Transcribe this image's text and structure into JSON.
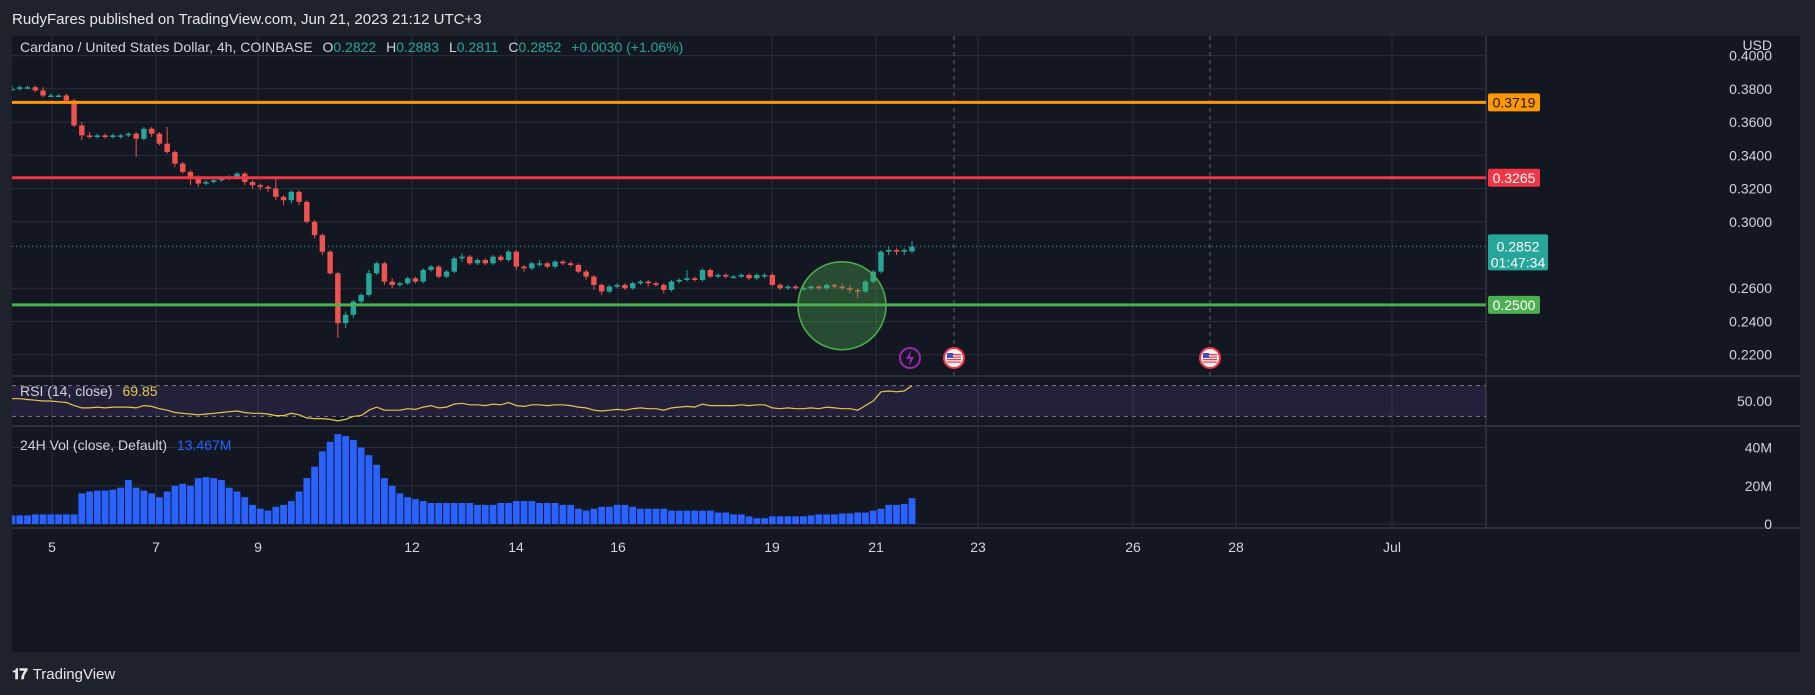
{
  "header": {
    "published": "RudyFares published on TradingView.com, Jun 21, 2023 21:12 UTC+3"
  },
  "footer": {
    "brand": "TradingView",
    "logo": "tv-logo-icon"
  },
  "legend": {
    "symbol": "Cardano / United States Dollar, 4h, COINBASE",
    "o_label": "O",
    "o_value": "0.2822",
    "h_label": "H",
    "h_value": "0.2883",
    "l_label": "L",
    "l_value": "0.2811",
    "c_label": "C",
    "c_value": "0.2852",
    "change": "+0.0030 (+1.06%)"
  },
  "rsi_legend": {
    "label": "RSI (14, close)",
    "value": "69.85"
  },
  "vol_legend": {
    "label": "24H Vol (close, Default)",
    "value": "13.467M"
  },
  "colors": {
    "up": "#26a69a",
    "down": "#ef5350",
    "volume": "#2962ff",
    "orange": "#ff9800",
    "red": "#f23645",
    "green": "#4caf50",
    "rsi": "#e0c850",
    "bg": "#131722",
    "grid": "#2a2e39"
  },
  "chart_data": [
    {
      "type": "candlestick",
      "title": "Cardano / United States Dollar, 4h, COINBASE",
      "y_unit": "USD",
      "ylim": [
        0.212,
        0.407
      ],
      "y_ticks": [
        "0.4000",
        "0.3800",
        "0.3600",
        "0.3400",
        "0.3200",
        "0.3000",
        "0.2600",
        "0.2400",
        "0.2200"
      ],
      "x_ticks": [
        "5",
        "7",
        "9",
        "12",
        "14",
        "16",
        "19",
        "21",
        "23",
        "26",
        "28",
        "Jul"
      ],
      "horizontal_levels": [
        {
          "value": 0.3719,
          "label": "0.3719",
          "color": "#ff9800"
        },
        {
          "value": 0.3265,
          "label": "0.3265",
          "color": "#f23645"
        },
        {
          "value": 0.25,
          "label": "0.2500",
          "color": "#4caf50"
        }
      ],
      "last_price": {
        "value": 0.2852,
        "label": "0.2852",
        "countdown": "01:47:34"
      },
      "annotation": {
        "type": "circle",
        "color": "#4caf50",
        "center_price": 0.2495
      },
      "events": [
        {
          "icon": "lightning-event-icon"
        },
        {
          "icon": "us-flag-event-icon"
        },
        {
          "icon": "us-flag-event-icon"
        }
      ],
      "close": [
        0.38,
        0.381,
        0.381,
        0.379,
        0.376,
        0.376,
        0.376,
        0.373,
        0.358,
        0.352,
        0.351,
        0.352,
        0.351,
        0.352,
        0.352,
        0.353,
        0.35,
        0.356,
        0.353,
        0.347,
        0.342,
        0.335,
        0.33,
        0.327,
        0.323,
        0.324,
        0.325,
        0.326,
        0.327,
        0.329,
        0.324,
        0.322,
        0.321,
        0.32,
        0.315,
        0.313,
        0.318,
        0.312,
        0.3,
        0.292,
        0.282,
        0.269,
        0.239,
        0.244,
        0.252,
        0.256,
        0.269,
        0.275,
        0.264,
        0.262,
        0.263,
        0.266,
        0.264,
        0.271,
        0.273,
        0.267,
        0.27,
        0.278,
        0.279,
        0.275,
        0.277,
        0.275,
        0.279,
        0.277,
        0.282,
        0.273,
        0.272,
        0.275,
        0.275,
        0.273,
        0.276,
        0.275,
        0.274,
        0.27,
        0.267,
        0.262,
        0.258,
        0.261,
        0.262,
        0.26,
        0.263,
        0.264,
        0.263,
        0.262,
        0.259,
        0.264,
        0.265,
        0.266,
        0.265,
        0.271,
        0.267,
        0.268,
        0.267,
        0.267,
        0.268,
        0.266,
        0.268,
        0.268,
        0.262,
        0.26,
        0.261,
        0.26,
        0.26,
        0.261,
        0.26,
        0.262,
        0.261,
        0.26,
        0.259,
        0.258,
        0.264,
        0.27,
        0.282,
        0.283,
        0.282,
        0.283,
        0.285
      ],
      "open": [
        0.38,
        0.38,
        0.381,
        0.381,
        0.379,
        0.376,
        0.376,
        0.376,
        0.373,
        0.358,
        0.352,
        0.351,
        0.352,
        0.351,
        0.352,
        0.352,
        0.353,
        0.35,
        0.356,
        0.353,
        0.347,
        0.342,
        0.335,
        0.33,
        0.327,
        0.323,
        0.324,
        0.325,
        0.326,
        0.327,
        0.329,
        0.324,
        0.322,
        0.321,
        0.32,
        0.315,
        0.313,
        0.318,
        0.312,
        0.3,
        0.292,
        0.282,
        0.269,
        0.239,
        0.244,
        0.252,
        0.256,
        0.269,
        0.275,
        0.264,
        0.262,
        0.263,
        0.266,
        0.264,
        0.271,
        0.273,
        0.267,
        0.27,
        0.278,
        0.279,
        0.275,
        0.277,
        0.275,
        0.279,
        0.277,
        0.282,
        0.273,
        0.272,
        0.275,
        0.275,
        0.273,
        0.276,
        0.275,
        0.274,
        0.27,
        0.267,
        0.262,
        0.258,
        0.261,
        0.262,
        0.26,
        0.263,
        0.264,
        0.263,
        0.262,
        0.259,
        0.264,
        0.265,
        0.266,
        0.265,
        0.271,
        0.267,
        0.268,
        0.267,
        0.267,
        0.268,
        0.266,
        0.268,
        0.268,
        0.262,
        0.26,
        0.261,
        0.26,
        0.26,
        0.261,
        0.26,
        0.262,
        0.261,
        0.26,
        0.259,
        0.258,
        0.264,
        0.27,
        0.282,
        0.283,
        0.282,
        0.2822
      ],
      "high": [
        0.382,
        0.382,
        0.382,
        0.382,
        0.381,
        0.377,
        0.377,
        0.377,
        0.374,
        0.36,
        0.354,
        0.353,
        0.353,
        0.353,
        0.353,
        0.354,
        0.354,
        0.357,
        0.357,
        0.354,
        0.357,
        0.343,
        0.336,
        0.331,
        0.328,
        0.325,
        0.326,
        0.327,
        0.328,
        0.33,
        0.33,
        0.325,
        0.323,
        0.322,
        0.326,
        0.316,
        0.319,
        0.319,
        0.313,
        0.301,
        0.293,
        0.283,
        0.27,
        0.246,
        0.253,
        0.257,
        0.271,
        0.276,
        0.276,
        0.266,
        0.264,
        0.267,
        0.267,
        0.272,
        0.274,
        0.274,
        0.271,
        0.279,
        0.281,
        0.28,
        0.278,
        0.278,
        0.28,
        0.28,
        0.283,
        0.283,
        0.274,
        0.276,
        0.277,
        0.276,
        0.277,
        0.277,
        0.276,
        0.275,
        0.271,
        0.268,
        0.263,
        0.262,
        0.263,
        0.263,
        0.264,
        0.265,
        0.265,
        0.264,
        0.263,
        0.265,
        0.266,
        0.271,
        0.267,
        0.272,
        0.272,
        0.269,
        0.269,
        0.268,
        0.269,
        0.269,
        0.269,
        0.269,
        0.269,
        0.263,
        0.262,
        0.262,
        0.262,
        0.262,
        0.262,
        0.263,
        0.263,
        0.263,
        0.262,
        0.26,
        0.265,
        0.271,
        0.283,
        0.285,
        0.284,
        0.284,
        0.2883
      ],
      "low": [
        0.379,
        0.379,
        0.38,
        0.378,
        0.375,
        0.375,
        0.375,
        0.372,
        0.357,
        0.349,
        0.35,
        0.35,
        0.35,
        0.35,
        0.35,
        0.351,
        0.339,
        0.349,
        0.351,
        0.346,
        0.341,
        0.333,
        0.329,
        0.322,
        0.321,
        0.322,
        0.323,
        0.324,
        0.325,
        0.326,
        0.322,
        0.32,
        0.319,
        0.318,
        0.313,
        0.31,
        0.311,
        0.31,
        0.299,
        0.29,
        0.28,
        0.268,
        0.23,
        0.236,
        0.242,
        0.251,
        0.255,
        0.268,
        0.262,
        0.26,
        0.261,
        0.262,
        0.263,
        0.263,
        0.27,
        0.266,
        0.266,
        0.269,
        0.276,
        0.274,
        0.274,
        0.274,
        0.274,
        0.276,
        0.276,
        0.271,
        0.27,
        0.271,
        0.273,
        0.272,
        0.272,
        0.274,
        0.273,
        0.269,
        0.265,
        0.259,
        0.256,
        0.257,
        0.26,
        0.259,
        0.259,
        0.262,
        0.261,
        0.261,
        0.257,
        0.258,
        0.263,
        0.264,
        0.264,
        0.264,
        0.266,
        0.266,
        0.266,
        0.266,
        0.266,
        0.265,
        0.265,
        0.266,
        0.261,
        0.259,
        0.259,
        0.259,
        0.259,
        0.259,
        0.259,
        0.259,
        0.26,
        0.259,
        0.257,
        0.254,
        0.257,
        0.263,
        0.269,
        0.28,
        0.28,
        0.28,
        0.2811
      ]
    },
    {
      "type": "line",
      "title": "RSI (14, close)",
      "ylim": [
        20,
        80
      ],
      "y_ticks": [
        "50.00"
      ],
      "bands": [
        70,
        30
      ],
      "values": [
        53,
        53,
        52,
        51,
        50,
        50,
        49,
        48,
        44,
        41,
        41,
        42,
        41,
        42,
        42,
        42,
        41,
        44,
        43,
        40,
        38,
        35,
        34,
        33,
        32,
        33,
        34,
        35,
        36,
        37,
        35,
        34,
        34,
        33,
        31,
        31,
        34,
        32,
        28,
        27,
        27,
        26,
        24,
        26,
        30,
        31,
        38,
        42,
        38,
        38,
        38,
        40,
        39,
        42,
        44,
        41,
        42,
        46,
        47,
        45,
        45,
        44,
        46,
        45,
        48,
        44,
        43,
        45,
        45,
        44,
        45,
        45,
        44,
        42,
        41,
        38,
        37,
        38,
        39,
        38,
        40,
        41,
        40,
        40,
        38,
        41,
        42,
        43,
        42,
        46,
        44,
        44,
        44,
        44,
        45,
        44,
        45,
        45,
        41,
        40,
        41,
        40,
        40,
        41,
        40,
        42,
        41,
        40,
        40,
        38,
        44,
        50,
        62,
        63,
        62,
        63,
        69.85
      ]
    },
    {
      "type": "bar",
      "title": "24H Vol (close, Default)",
      "y_unit": "M",
      "ylim": [
        0,
        45
      ],
      "y_ticks": [
        "40M",
        "20M",
        "0"
      ],
      "values": [
        4.5,
        4.5,
        4.5,
        5,
        5,
        5,
        5,
        5,
        5,
        16,
        17,
        17.5,
        17.5,
        18,
        19,
        23,
        19,
        17.5,
        16,
        14,
        17,
        20,
        21,
        20,
        24,
        24.5,
        24,
        23,
        19,
        17,
        14,
        10,
        8,
        7,
        9,
        10,
        12,
        17,
        24,
        30,
        38,
        43,
        47,
        46,
        44,
        40,
        36,
        31,
        24,
        20,
        16,
        14,
        13,
        12,
        11,
        11,
        11,
        11,
        11,
        11,
        10,
        10,
        10,
        11,
        11,
        12,
        12,
        12,
        11,
        11,
        11,
        10,
        10,
        8,
        7,
        8,
        9,
        9,
        10,
        10,
        9,
        8,
        8,
        8,
        8,
        7,
        7,
        7,
        7,
        7,
        7,
        6,
        6,
        5,
        5,
        4,
        3,
        3,
        4,
        4,
        4,
        4,
        4,
        4.5,
        5,
        5,
        5,
        5.5,
        5.5,
        6,
        6,
        7,
        8,
        10,
        10,
        10.5,
        13.5
      ]
    }
  ]
}
